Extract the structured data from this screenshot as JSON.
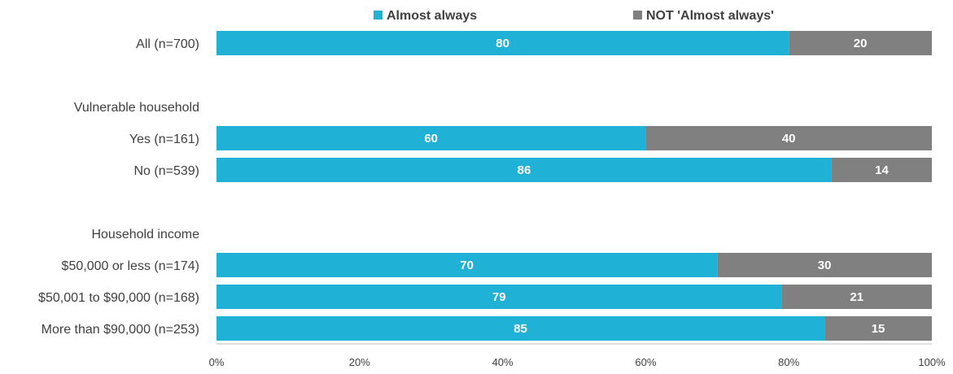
{
  "chart_data": {
    "type": "bar",
    "orientation": "horizontal",
    "stacked": true,
    "categories": [
      "All (n=700)",
      "Vulnerable household",
      "Yes (n=161)",
      "No (n=539)",
      "Household income",
      "$50,000 or less (n=174)",
      "$50,001 to $90,000 (n=168)",
      "More than $90,000 (n=253)"
    ],
    "category_is_header": [
      false,
      true,
      false,
      false,
      true,
      false,
      false,
      false
    ],
    "series": [
      {
        "name": "Almost always",
        "color": "#20b2d6",
        "values": [
          80,
          null,
          60,
          86,
          null,
          70,
          79,
          85
        ]
      },
      {
        "name": "NOT 'Almost always'",
        "color": "#808080",
        "values": [
          20,
          null,
          40,
          14,
          null,
          30,
          21,
          15
        ]
      }
    ],
    "xlim": [
      0,
      100
    ],
    "xticks": [
      "0%",
      "20%",
      "40%",
      "60%",
      "80%",
      "100%"
    ],
    "grid": false,
    "legend_position": "top"
  }
}
